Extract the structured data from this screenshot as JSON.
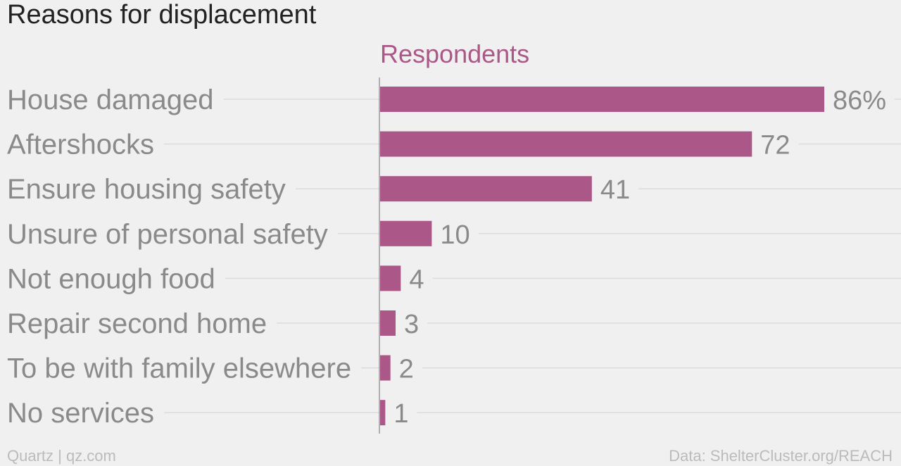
{
  "chart_data": {
    "type": "bar",
    "orientation": "horizontal",
    "title": "Reasons for displacement",
    "series_name": "Respondents",
    "categories": [
      "House damaged",
      "Aftershocks",
      "Ensure housing safety",
      "Unsure of personal safety",
      "Not enough food",
      "Repair second home",
      "To be with family elsewhere",
      "No services"
    ],
    "values": [
      86,
      72,
      41,
      10,
      4,
      3,
      2,
      1
    ],
    "value_labels": [
      "86%",
      "72",
      "41",
      "10",
      "4",
      "3",
      "2",
      "1"
    ],
    "unit": "%",
    "xlim": [
      0,
      86
    ],
    "grid": true,
    "bar_color": "#ab5787",
    "series_color": "#ab5787"
  },
  "footer": {
    "source_left": "Quartz | qz.com",
    "source_right": "Data: ShelterCluster.org/REACH"
  }
}
